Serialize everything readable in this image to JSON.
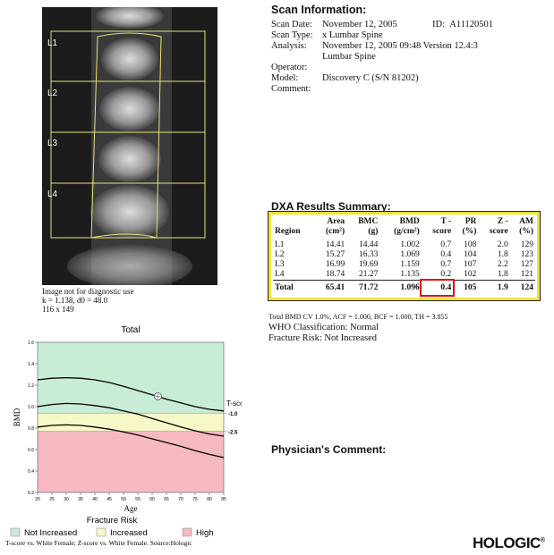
{
  "image": {
    "region_labels": [
      "L1",
      "L2",
      "L3",
      "L4"
    ],
    "caption": [
      "Image not for diagnostic use",
      "k = 1.138, d0 = 48.0",
      "116 x 149"
    ]
  },
  "scan_info": {
    "title": "Scan Information:",
    "rows": [
      {
        "label": "Scan Date:",
        "value": [
          "November 12, 2005"
        ]
      },
      {
        "label": "Scan Type:",
        "value": [
          "x Lumbar Spine"
        ]
      },
      {
        "label": "Analysis:",
        "value": [
          "November 12, 2005 09:48 Version 12.4:3",
          "Lumbar Spine"
        ]
      },
      {
        "label": "Operator:",
        "value": []
      },
      {
        "label": "Model:",
        "value": [
          "Discovery C (S/N 81202)"
        ]
      },
      {
        "label": "Comment:",
        "value": []
      }
    ],
    "id_label": "ID:",
    "id": "A11120501"
  },
  "results": {
    "title": "DXA Results Summary:",
    "header": [
      [
        "Region"
      ],
      [
        "Area",
        "(cm²)"
      ],
      [
        "BMC",
        "(g)"
      ],
      [
        "BMD",
        "(g/cm²)"
      ],
      [
        "T -",
        "score"
      ],
      [
        "PR",
        "(%)"
      ],
      [
        "Z -",
        "score"
      ],
      [
        "AM",
        "(%)"
      ]
    ],
    "rows": [
      [
        "L1",
        "14.41",
        "14.44",
        "1.002",
        "0.7",
        "108",
        "2.0",
        "129"
      ],
      [
        "L2",
        "15.27",
        "16.33",
        "1.069",
        "0.4",
        "104",
        "1.8",
        "123"
      ],
      [
        "L3",
        "16.99",
        "19.69",
        "1.159",
        "0.7",
        "107",
        "2.2",
        "127"
      ],
      [
        "L4",
        "18.74",
        "21.27",
        "1.135",
        "0.2",
        "102",
        "1.8",
        "121"
      ],
      [
        "Total",
        "65.41",
        "71.72",
        "1.096",
        "0.4",
        "105",
        "1.9",
        "124"
      ]
    ],
    "notes": [
      "Total BMD CV 1.0%, ACF = 1.000, BCF = 1.000, TH = 3.855",
      "WHO Classification: Normal",
      "Fracture Risk: Not Increased"
    ]
  },
  "physician_comment": "Physician's Comment:",
  "logo": "HOLOGIC",
  "logo_mark": "®",
  "bmd_chart": {
    "type": "line",
    "title": "Total",
    "x_label": "Age",
    "y_label": "BMD",
    "y2_label": "T-score",
    "xlim": [
      20,
      85
    ],
    "xticks": [
      20,
      25,
      30,
      35,
      40,
      45,
      50,
      55,
      60,
      65,
      70,
      75,
      80,
      85
    ],
    "ylim": [
      0.2,
      1.6
    ],
    "yticks": [
      0.2,
      0.4,
      0.6,
      0.8,
      {
        "value": 1,
        "label": "1.0"
      },
      1.2,
      1.4,
      1.6
    ],
    "x": [
      20,
      25,
      30,
      35,
      40,
      45,
      50,
      55,
      60,
      65,
      70,
      75,
      80,
      85
    ],
    "series": [
      {
        "color": "#000000",
        "values": [
          1.25,
          1.265,
          1.27,
          1.265,
          1.25,
          1.225,
          1.19,
          1.15,
          1.11,
          1.07,
          1.035,
          1.0,
          0.975,
          0.96
        ]
      },
      {
        "color": "#000000",
        "values": [
          1.0,
          1.02,
          1.03,
          1.025,
          1.01,
          0.99,
          0.96,
          0.93,
          0.89,
          0.85,
          0.81,
          0.775,
          0.745,
          0.725
        ]
      },
      {
        "color": "#000000",
        "values": [
          0.81,
          0.825,
          0.83,
          0.825,
          0.81,
          0.79,
          0.765,
          0.735,
          0.7,
          0.665,
          0.63,
          0.59,
          0.555,
          0.525
        ]
      }
    ],
    "t_score_lines": [
      {
        "value": 0.94,
        "label": "-1.0"
      },
      {
        "value": 0.77,
        "label": "-2.5"
      }
    ],
    "patient": {
      "x": 62,
      "y": 1.096
    },
    "legend": {
      "title": "Fracture Risk",
      "items": [
        {
          "name": "Not Increased",
          "color": "#c9ecd7"
        },
        {
          "name": "Increased",
          "color": "#f8f7c8"
        },
        {
          "name": "High",
          "color": "#f6b9c2"
        }
      ]
    },
    "source": "T-score vs. White Female; Z-score vs. White Female. Source:Hologic"
  }
}
